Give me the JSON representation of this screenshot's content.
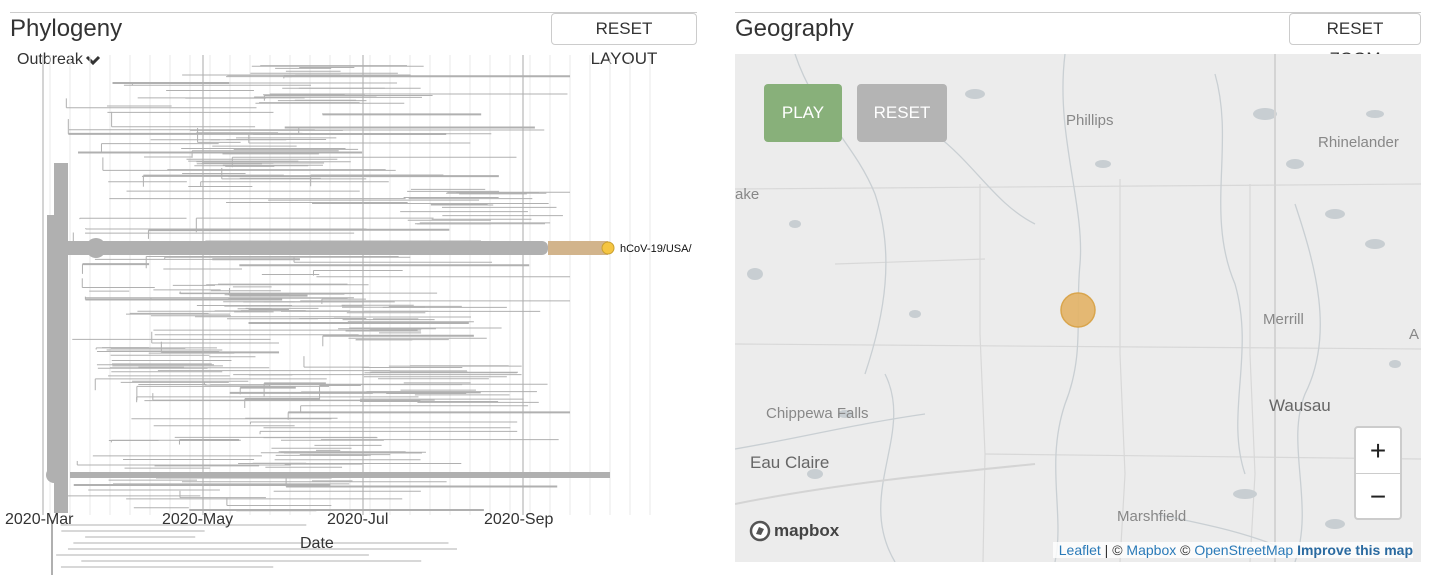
{
  "phylogeny": {
    "title": "Phylogeny",
    "reset_label": "RESET LAYOUT",
    "color_by": "Outbreak",
    "tip_label": "hCoV-19/USA/",
    "x_axis_title": "Date",
    "x_ticks": [
      "2020-Mar",
      "2020-May",
      "2020-Jul",
      "2020-Sep"
    ]
  },
  "geography": {
    "title": "Geography",
    "reset_label": "RESET ZOOM",
    "play_label": "PLAY",
    "reset_map_label": "RESET",
    "zoom_in": "+",
    "zoom_out": "−",
    "places": {
      "phillips": "Phillips",
      "rhinelander": "Rhinelander",
      "lake": "ake",
      "merrill": "Merrill",
      "a": "A",
      "chippewa_falls": "Chippewa Falls",
      "wausau": "Wausau",
      "eau_claire": "Eau Claire",
      "marshfield": "Marshfield"
    },
    "mapbox_logo": "mapbox",
    "attribution": {
      "leaflet": "Leaflet",
      "sep1": " | © ",
      "mapbox": "Mapbox",
      "sep2": " © ",
      "osm": "OpenStreetMap",
      "improve": "Improve this map"
    },
    "circle_color": "#e3b366"
  },
  "colors": {
    "branch": "#b0b0b0",
    "highlight": "#d2b48c",
    "tip": "#f5c542"
  }
}
